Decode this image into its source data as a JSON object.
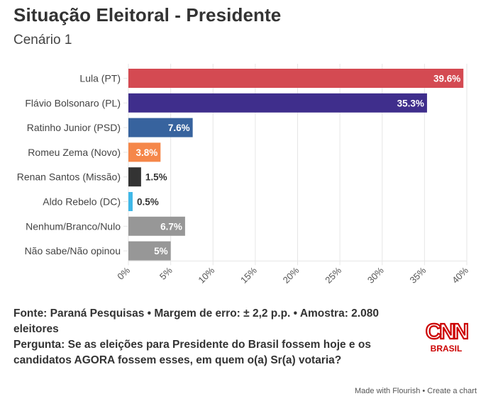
{
  "header": {
    "title": "Situação Eleitoral - Presidente",
    "subtitle": "Cenário 1"
  },
  "chart_data": {
    "type": "bar",
    "orientation": "horizontal",
    "title": "Situação Eleitoral - Presidente",
    "subtitle": "Cenário 1",
    "xlabel": "",
    "ylabel": "",
    "xlim": [
      0,
      40
    ],
    "grid": true,
    "x_ticks": [
      "0%",
      "5%",
      "10%",
      "15%",
      "20%",
      "25%",
      "30%",
      "35%",
      "40%"
    ],
    "x_tick_values": [
      0,
      5,
      10,
      15,
      20,
      25,
      30,
      35,
      40
    ],
    "categories": [
      "Lula (PT)",
      "Flávio Bolsonaro (PL)",
      "Ratinho Junior (PSD)",
      "Romeu Zema (Novo)",
      "Renan Santos (Missão)",
      "Aldo Rebelo (DC)",
      "Nenhum/Branco/Nulo",
      "Não sabe/Não opinou"
    ],
    "values": [
      39.6,
      35.3,
      7.6,
      3.8,
      1.5,
      0.5,
      6.7,
      5
    ],
    "labels": [
      "39.6%",
      "35.3%",
      "7.6%",
      "3.8%",
      "1.5%",
      "0.5%",
      "6.7%",
      "5%"
    ],
    "colors": [
      "#d44a52",
      "#3f2e8c",
      "#37639e",
      "#f5874a",
      "#333333",
      "#3fb8e8",
      "#979797",
      "#979797"
    ],
    "label_inside": [
      true,
      true,
      true,
      true,
      false,
      false,
      true,
      true
    ]
  },
  "footer": {
    "source_line": "Fonte: Paraná Pesquisas • Margem de erro: ± 2,2 p.p. • Amostra: 2.080 eleitores",
    "question_line": "Pergunta: Se as eleições para Presidente do Brasil fossem hoje e os candidatos AGORA fossem esses, em quem o(a) Sr(a) votaria?"
  },
  "logo": {
    "brand": "CNN",
    "sub": "BRASIL",
    "color": "#cc0000"
  },
  "credit": {
    "made_with": "Made with Flourish",
    "separator": " • ",
    "create": "Create a chart"
  }
}
